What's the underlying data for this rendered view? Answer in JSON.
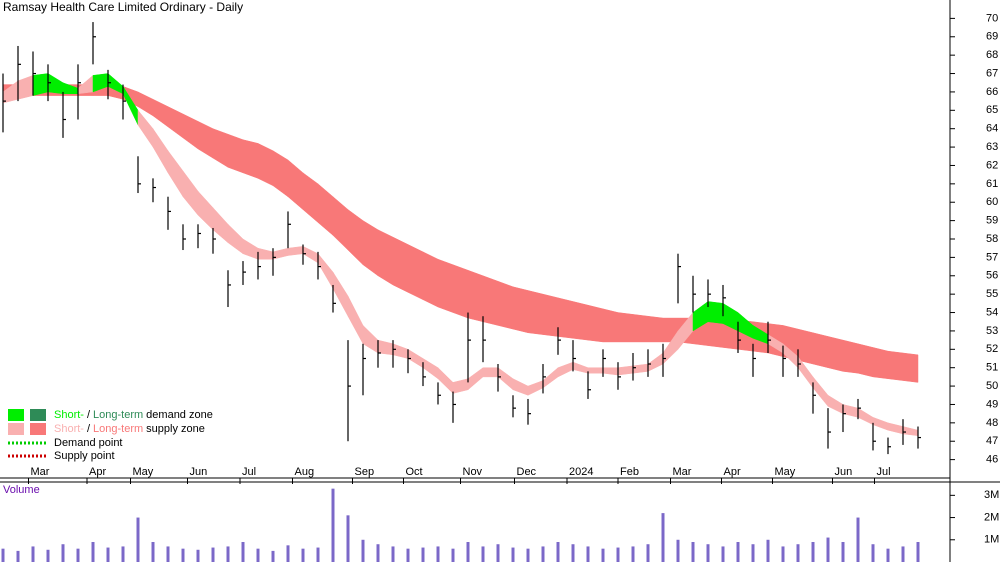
{
  "chart_data": {
    "type": "ohlc",
    "title": "Ramsay Health Care Limited Ordinary - Daily",
    "xlim": [
      0,
      61
    ],
    "xticks": [
      {
        "value": 1.7,
        "label": "Mar"
      },
      {
        "value": 5.6,
        "label": "Apr"
      },
      {
        "value": 8.5,
        "label": "May"
      },
      {
        "value": 12.3,
        "label": "Jun"
      },
      {
        "value": 15.8,
        "label": "Jul"
      },
      {
        "value": 19.3,
        "label": "Aug"
      },
      {
        "value": 23.3,
        "label": "Sep"
      },
      {
        "value": 26.7,
        "label": "Oct"
      },
      {
        "value": 30.5,
        "label": "Nov"
      },
      {
        "value": 34.1,
        "label": "Dec"
      },
      {
        "value": 37.6,
        "label": "2024"
      },
      {
        "value": 41.0,
        "label": "Feb"
      },
      {
        "value": 44.5,
        "label": "Mar"
      },
      {
        "value": 47.9,
        "label": "Apr"
      },
      {
        "value": 51.3,
        "label": "May"
      },
      {
        "value": 55.3,
        "label": "Jun"
      },
      {
        "value": 58.1,
        "label": "Jul"
      }
    ],
    "ylim": [
      45,
      71
    ],
    "yticks": [
      46,
      47,
      48,
      49,
      50,
      51,
      52,
      53,
      54,
      55,
      56,
      57,
      58,
      59,
      60,
      61,
      62,
      63,
      64,
      65,
      66,
      67,
      68,
      69,
      70
    ],
    "bar_color": "#000000",
    "high": [
      67,
      68.5,
      68.2,
      67.5,
      66,
      67.5,
      69.8,
      67.2,
      66.4,
      62.5,
      61.3,
      60.3,
      58.8,
      58.8,
      58.6,
      56.3,
      56.8,
      57.3,
      57.5,
      59.5,
      57.7,
      57.3,
      55.5,
      52.5,
      52.3,
      52.5,
      52.5,
      52,
      51.3,
      50.2,
      49.7,
      54,
      53.8,
      51.2,
      49.5,
      49.3,
      51.2,
      53.2,
      52.5,
      50.8,
      52,
      51.3,
      51.8,
      52,
      52.3,
      57.2,
      56,
      55.8,
      55.5,
      53.5,
      52.3,
      53.5,
      52.2,
      52,
      50.2,
      48.8,
      49,
      49.3,
      48,
      47.2,
      48.2,
      47.8
    ],
    "low": [
      63.8,
      65.5,
      65.8,
      65.5,
      63.5,
      64.5,
      67.5,
      65.6,
      64.5,
      60.5,
      60,
      58.5,
      57.4,
      57.5,
      57.2,
      54.3,
      55.5,
      55.8,
      56,
      57.5,
      56.6,
      55.8,
      54,
      47,
      49.5,
      51,
      51,
      50.7,
      50,
      49,
      48,
      50.2,
      51.3,
      49.7,
      48.3,
      47.9,
      49.6,
      51.7,
      50.8,
      49.3,
      50.5,
      49.8,
      50.3,
      50.5,
      50.5,
      54.5,
      54,
      54.3,
      53.8,
      51.8,
      50.5,
      51.8,
      50.5,
      50.5,
      48.5,
      46.6,
      47.5,
      48.2,
      46.5,
      46.3,
      46.8,
      46.6
    ],
    "close": [
      65.5,
      67.5,
      67,
      66.5,
      64.5,
      66.5,
      69,
      66.5,
      65.5,
      61,
      60.8,
      59.5,
      58,
      58.3,
      58,
      55.5,
      56.2,
      56.5,
      57,
      58.8,
      57.2,
      56.5,
      54.5,
      50,
      51.5,
      51.8,
      52,
      51.5,
      50.5,
      49.5,
      49,
      52.5,
      52.5,
      50.5,
      48.8,
      48.5,
      50.5,
      52.5,
      51.5,
      49.8,
      51.5,
      50.5,
      51,
      51.2,
      51.5,
      56.5,
      55,
      55,
      54.8,
      52.5,
      51.5,
      52.5,
      51.5,
      51.2,
      49.5,
      47.5,
      48.5,
      48.8,
      47,
      46.7,
      47.5,
      47.2
    ],
    "short_band_upper": [
      66.0,
      66.6,
      66.9,
      67.0,
      66.5,
      66.2,
      66.9,
      67.0,
      66.3,
      65.0,
      64.0,
      62.8,
      61.7,
      60.6,
      59.7,
      58.8,
      58.0,
      57.5,
      57.3,
      57.5,
      57.6,
      57.2,
      56.2,
      54.9,
      53.3,
      52.5,
      52.3,
      52.0,
      51.5,
      51.0,
      50.2,
      50.4,
      51.0,
      51.0,
      50.4,
      50.0,
      50.3,
      51.0,
      51.3,
      51.0,
      51.0,
      51.0,
      51.1,
      51.2,
      51.8,
      53.0,
      54.0,
      54.6,
      54.5,
      54.0,
      53.3,
      52.8,
      52.3,
      51.6,
      50.5,
      49.5,
      49.0,
      48.8,
      48.3,
      48.0,
      47.8,
      47.6
    ],
    "short_band_lower": [
      65.4,
      65.6,
      65.8,
      66.0,
      65.9,
      65.9,
      66.0,
      66.3,
      65.9,
      64.2,
      63.0,
      61.6,
      60.3,
      59.3,
      58.5,
      57.8,
      57.2,
      56.9,
      56.9,
      57.1,
      57.2,
      56.7,
      55.3,
      53.8,
      52.3,
      51.8,
      51.7,
      51.5,
      51.0,
      50.4,
      49.6,
      49.8,
      50.5,
      50.5,
      49.8,
      49.5,
      49.9,
      50.5,
      50.9,
      50.7,
      50.7,
      50.6,
      50.7,
      50.8,
      51.2,
      52.0,
      53.0,
      53.5,
      53.4,
      53.0,
      52.6,
      52.3,
      51.8,
      51.0,
      49.9,
      48.9,
      48.5,
      48.3,
      47.9,
      47.6,
      47.4,
      47.3
    ],
    "long_band_upper": [
      66.4,
      66.4,
      66.4,
      66.4,
      66.4,
      66.4,
      66.4,
      66.4,
      66.3,
      66.0,
      65.6,
      65.2,
      64.8,
      64.4,
      64.0,
      63.7,
      63.4,
      63.2,
      62.8,
      62.3,
      61.6,
      61.0,
      60.3,
      59.6,
      59.0,
      58.5,
      58.1,
      57.7,
      57.3,
      56.9,
      56.6,
      56.3,
      56.0,
      55.7,
      55.4,
      55.2,
      55.0,
      54.8,
      54.6,
      54.4,
      54.2,
      54.0,
      53.9,
      53.8,
      53.7,
      53.7,
      53.7,
      53.6,
      53.6,
      53.6,
      53.5,
      53.4,
      53.3,
      53.1,
      52.9,
      52.7,
      52.5,
      52.3,
      52.1,
      51.9,
      51.8,
      51.7
    ],
    "long_band_lower": [
      65.8,
      65.8,
      65.8,
      65.8,
      65.8,
      65.8,
      65.8,
      65.8,
      65.6,
      65.2,
      64.7,
      64.1,
      63.5,
      62.9,
      62.4,
      61.9,
      61.6,
      61.3,
      60.9,
      60.3,
      59.6,
      58.9,
      58.2,
      57.4,
      56.6,
      56.0,
      55.5,
      55.1,
      54.7,
      54.3,
      54.0,
      53.7,
      53.5,
      53.3,
      53.1,
      52.9,
      52.8,
      52.7,
      52.6,
      52.5,
      52.4,
      52.4,
      52.4,
      52.4,
      52.4,
      52.4,
      52.3,
      52.2,
      52.1,
      52.0,
      51.9,
      51.8,
      51.6,
      51.4,
      51.2,
      51.0,
      50.8,
      50.7,
      50.5,
      50.4,
      50.3,
      50.2
    ],
    "legend": {
      "zones": [
        {
          "short": "Short-",
          "sep": "/",
          "long": "Long-term",
          "label": "demand zone",
          "short_color": "#00ee00",
          "long_color": "#2e8b57"
        },
        {
          "short": "Short-",
          "sep": "/",
          "long": "Long-term",
          "label": "supply zone",
          "short_color": "#f9b0b0",
          "long_color": "#f87878"
        }
      ],
      "points": [
        {
          "label": "Demand point",
          "color": "#00cc00"
        },
        {
          "label": "Supply point",
          "color": "#cc0000"
        }
      ]
    },
    "volume": {
      "label": "Volume",
      "color": "#7b68c8",
      "ylim": [
        0,
        3600000
      ],
      "yticks": [
        {
          "value": 1000000,
          "label": "1M"
        },
        {
          "value": 2000000,
          "label": "2M"
        },
        {
          "value": 3000000,
          "label": "3M"
        }
      ],
      "values": [
        600000,
        500000,
        700000,
        550000,
        800000,
        600000,
        900000,
        650000,
        700000,
        2000000,
        900000,
        700000,
        600000,
        550000,
        650000,
        700000,
        900000,
        600000,
        500000,
        750000,
        600000,
        650000,
        3300000,
        2100000,
        1000000,
        800000,
        700000,
        600000,
        650000,
        700000,
        600000,
        900000,
        700000,
        800000,
        650000,
        600000,
        700000,
        900000,
        800000,
        700000,
        600000,
        650000,
        700000,
        800000,
        2200000,
        1000000,
        900000,
        800000,
        700000,
        900000,
        800000,
        1000000,
        700000,
        800000,
        900000,
        1100000,
        900000,
        2000000,
        800000,
        600000,
        700000,
        900000
      ]
    }
  }
}
